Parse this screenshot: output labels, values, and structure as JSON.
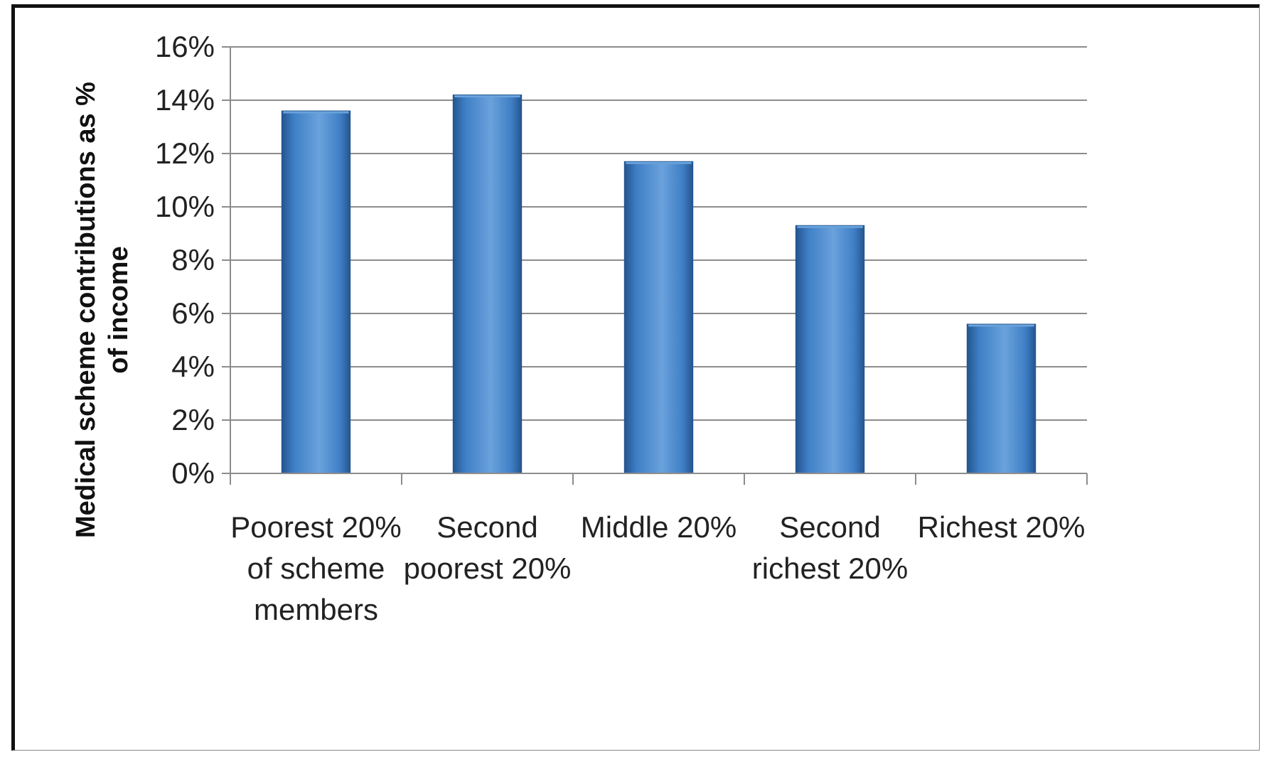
{
  "chart_data": {
    "type": "bar",
    "title": "",
    "xlabel": "",
    "ylabel": "Medical scheme contributions as % of income",
    "ylabel_lines": [
      "Medical scheme contributions as %",
      "of income"
    ],
    "categories": [
      "Poorest 20% of scheme members",
      "Second poorest 20%",
      "Middle 20%",
      "Second richest 20%",
      "Richest 20%"
    ],
    "category_lines": [
      [
        "Poorest 20%",
        "of scheme",
        "members"
      ],
      [
        "Second",
        "poorest 20%"
      ],
      [
        "Middle 20%"
      ],
      [
        "Second",
        "richest 20%"
      ],
      [
        "Richest 20%"
      ]
    ],
    "values": [
      13.6,
      14.2,
      11.7,
      9.3,
      5.6
    ],
    "ylim": [
      0,
      16
    ],
    "yticks": [
      0,
      2,
      4,
      6,
      8,
      10,
      12,
      14,
      16
    ],
    "ytick_labels": [
      "0%",
      "2%",
      "4%",
      "6%",
      "8%",
      "10%",
      "12%",
      "14%",
      "16%"
    ],
    "grid": true,
    "legend": "none",
    "colors": {
      "bar": "#3f7fc6",
      "bar_dark": "#24558e",
      "bar_light": "#6aa2dc",
      "grid": "#8c8c8c",
      "axis": "#8c8c8c"
    }
  }
}
